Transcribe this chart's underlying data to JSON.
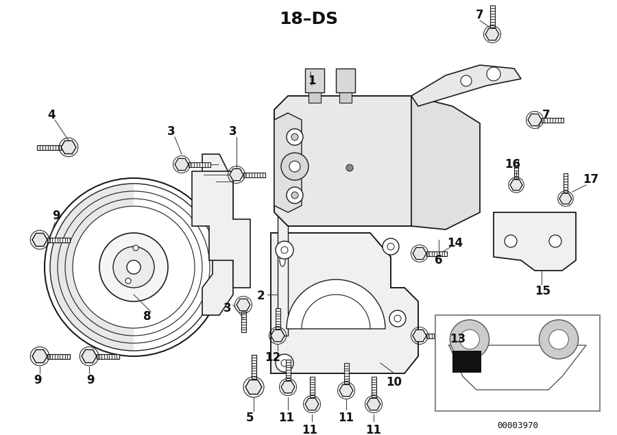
{
  "title": "18–DS",
  "bg_color": "#ffffff",
  "lc": "#1a1a1a",
  "tc": "#111111",
  "car_code": "00003970",
  "fig_w": 9.0,
  "fig_h": 6.35,
  "dpi": 100
}
